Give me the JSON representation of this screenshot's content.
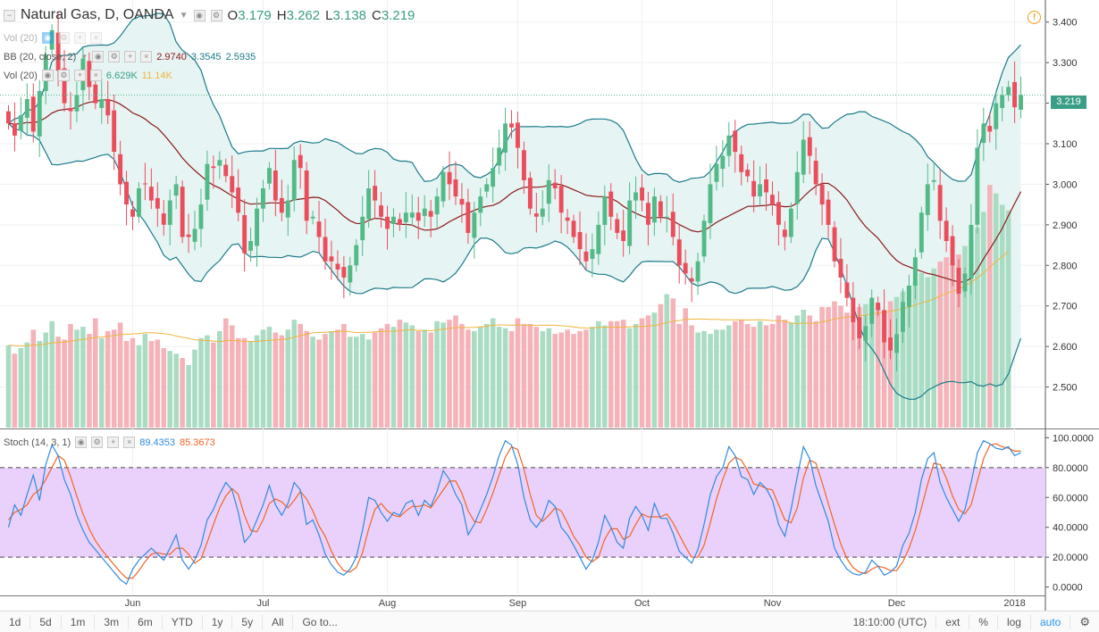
{
  "header": {
    "symbol": "Natural Gas, D, OANDA",
    "open_label": "O",
    "open": "3.179",
    "high_label": "H",
    "high": "3.262",
    "low_label": "L",
    "low": "3.138",
    "close_label": "C",
    "close": "3.219"
  },
  "legends": {
    "vol_faded": "Vol (20)",
    "bb": {
      "name": "BB (20, close, 2)",
      "v1": "2.9740",
      "v2": "3.3545",
      "v3": "2.5935"
    },
    "vol": {
      "name": "Vol (20)",
      "v1": "6.629K",
      "v2": "11.14K"
    },
    "stoch": {
      "name": "Stoch (14, 3, 1)",
      "v1": "89.4353",
      "v2": "85.3673"
    }
  },
  "last_price_tag": "3.219",
  "toolbar": {
    "timeframes": [
      "1d",
      "5d",
      "1m",
      "3m",
      "6m",
      "YTD",
      "1y",
      "5y",
      "All"
    ],
    "goto": "Go to...",
    "time": "18:10:00 (UTC)",
    "ext": "ext",
    "percent": "%",
    "log": "log",
    "auto": "auto"
  },
  "colors": {
    "up": "#53b987",
    "down": "#eb4d5c",
    "bb_band": "#1b7b8a",
    "bb_basis": "#8b1a1a",
    "bb_fill": "#e6f4f3",
    "vol_ma": "#f0b43c",
    "k_line": "#2f8ae0",
    "d_line": "#f26522",
    "stoch_bg": "#ead1fb",
    "accent": "#2196f3"
  },
  "chart_data": [
    {
      "type": "candlestick",
      "title": "Natural Gas, D, OANDA",
      "ylim": [
        2.4,
        3.45
      ],
      "yticks": [
        "3.400",
        "3.300",
        "3.200",
        "3.100",
        "3.000",
        "2.900",
        "2.800",
        "2.700",
        "2.600",
        "2.500"
      ],
      "ytick_values": [
        3.4,
        3.3,
        3.2,
        3.1,
        3.0,
        2.9,
        2.8,
        2.7,
        2.6,
        2.5
      ],
      "x_month_labels": [
        "Jun",
        "Jul",
        "Aug",
        "Sep",
        "Oct",
        "Nov",
        "Dec",
        "2018"
      ],
      "x_month_index": [
        20,
        41,
        61,
        82,
        102,
        123,
        143,
        162
      ],
      "closes": [
        3.15,
        3.12,
        3.17,
        3.21,
        3.13,
        3.23,
        3.32,
        3.38,
        3.28,
        3.2,
        3.18,
        3.22,
        3.31,
        3.24,
        3.2,
        3.21,
        3.17,
        3.08,
        3.0,
        2.95,
        2.92,
        2.99,
        3.0,
        2.96,
        2.94,
        2.9,
        2.96,
        3.0,
        2.87,
        2.87,
        2.89,
        2.95,
        3.05,
        3.04,
        3.06,
        3.02,
        2.98,
        2.93,
        2.83,
        2.86,
        2.94,
        2.99,
        3.04,
        2.96,
        2.93,
        2.96,
        3.06,
        3.04,
        2.91,
        2.92,
        2.87,
        2.81,
        2.81,
        2.79,
        2.77,
        2.8,
        2.85,
        2.92,
        2.99,
        2.96,
        2.92,
        2.89,
        2.92,
        2.9,
        2.93,
        2.93,
        2.91,
        2.94,
        2.92,
        2.97,
        3.03,
        3.0,
        2.97,
        2.95,
        2.88,
        2.93,
        2.97,
        3.0,
        3.04,
        3.09,
        3.15,
        3.14,
        3.09,
        3.01,
        2.94,
        2.92,
        2.94,
        3.01,
        2.99,
        2.93,
        2.91,
        2.87,
        2.84,
        2.81,
        2.84,
        2.9,
        2.97,
        2.92,
        2.88,
        2.86,
        2.96,
        2.98,
        2.96,
        2.9,
        2.97,
        2.92,
        2.92,
        2.87,
        2.8,
        2.78,
        2.76,
        2.81,
        2.91,
        3.0,
        3.05,
        3.07,
        3.12,
        3.08,
        3.03,
        3.02,
        2.97,
        3.0,
        2.98,
        2.95,
        2.9,
        2.87,
        2.94,
        3.03,
        3.11,
        3.07,
        3.0,
        2.95,
        2.9,
        2.81,
        2.77,
        2.72,
        2.66,
        2.62,
        2.65,
        2.72,
        2.69,
        2.61,
        2.59,
        2.63,
        2.71,
        2.75,
        2.82,
        2.93,
        3.0,
        3.01,
        2.91,
        2.86,
        2.8,
        2.73,
        2.78,
        2.9,
        3.09,
        3.15,
        3.13,
        3.2,
        3.22,
        3.24,
        3.19,
        3.22
      ],
      "bollinger": {
        "period": 20,
        "mult": 2,
        "basis_last": 2.974,
        "upper_last": 3.3545,
        "lower_last": 2.5935
      }
    },
    {
      "type": "bar",
      "title": "Vol (20)",
      "note": "volume in thousands",
      "ylim": [
        0,
        30
      ],
      "values": [
        5.8,
        5.2,
        5.6,
        6.0,
        6.9,
        6.1,
        6.7,
        7.5,
        6.4,
        6.2,
        7.3,
        6.9,
        7.1,
        6.6,
        7.7,
        6.3,
        6.8,
        6.9,
        7.4,
        6.1,
        6.3,
        5.8,
        6.6,
        6.1,
        6.2,
        5.6,
        5.4,
        5.2,
        4.9,
        4.4,
        5.5,
        6.3,
        6.5,
        6.0,
        6.8,
        7.7,
        7.2,
        6.3,
        6.3,
        6.1,
        6.5,
        6.9,
        7.1,
        6.7,
        6.5,
        6.9,
        7.6,
        7.3,
        6.8,
        6.4,
        6.2,
        6.6,
        6.8,
        6.9,
        7.3,
        6.4,
        6.4,
        6.6,
        6.2,
        6.7,
        7.0,
        7.3,
        7.1,
        7.6,
        7.4,
        7.2,
        6.8,
        6.9,
        6.7,
        7.5,
        7.4,
        7.6,
        7.9,
        7.3,
        6.9,
        6.8,
        7.1,
        7.3,
        7.7,
        7.1,
        7.0,
        6.8,
        7.7,
        7.3,
        7.3,
        7.1,
        6.8,
        7.0,
        6.6,
        6.7,
        6.9,
        6.6,
        6.8,
        6.9,
        7.1,
        7.5,
        7.2,
        7.5,
        7.5,
        7.6,
        7.0,
        7.3,
        7.7,
        7.9,
        8.1,
        8.7,
        9.4,
        9.1,
        7.3,
        8.4,
        7.2,
        6.7,
        6.8,
        6.6,
        6.9,
        6.9,
        7.2,
        7.5,
        7.6,
        7.3,
        7.1,
        7.5,
        7.2,
        7.3,
        7.9,
        7.6,
        7.4,
        7.9,
        8.3,
        7.9,
        7.5,
        8.5,
        8.5,
        8.9,
        8.6,
        8.1,
        7.8,
        8.5,
        8.7,
        8.8,
        8.5,
        8.2,
        8.9,
        9.2,
        9.6,
        10.0,
        10.3,
        10.9,
        10.6,
        11.2,
        11.7,
        12.0,
        11.6,
        12.2,
        12.8,
        13.2,
        14.1,
        15.2,
        17.1,
        16.5,
        15.7,
        15.3
      ],
      "ma_last": 11.14,
      "last_value": 6.629
    },
    {
      "type": "line",
      "title": "Stoch (14, 3, 1)",
      "ylim": [
        -5,
        105
      ],
      "yticks": [
        "100.0000",
        "80.0000",
        "60.0000",
        "40.0000",
        "20.0000",
        "0.0000"
      ],
      "ytick_values": [
        100,
        80,
        60,
        40,
        20,
        0
      ],
      "bands": [
        20,
        80
      ],
      "series": [
        {
          "name": "%K",
          "last": 89.4353,
          "values": [
            40,
            55,
            48,
            62,
            75,
            58,
            82,
            95,
            88,
            72,
            62,
            48,
            38,
            30,
            25,
            20,
            15,
            10,
            5,
            2,
            12,
            18,
            22,
            26,
            22,
            18,
            26,
            35,
            18,
            12,
            18,
            28,
            45,
            52,
            62,
            70,
            65,
            50,
            30,
            35,
            45,
            55,
            68,
            55,
            48,
            56,
            70,
            65,
            42,
            45,
            35,
            22,
            15,
            10,
            8,
            12,
            20,
            38,
            60,
            58,
            50,
            44,
            50,
            48,
            56,
            58,
            48,
            58,
            54,
            64,
            78,
            72,
            62,
            55,
            35,
            42,
            52,
            62,
            74,
            88,
            98,
            95,
            82,
            60,
            45,
            40,
            46,
            58,
            54,
            40,
            35,
            28,
            20,
            12,
            18,
            30,
            48,
            40,
            30,
            26,
            46,
            54,
            48,
            38,
            56,
            46,
            46,
            36,
            24,
            20,
            16,
            25,
            42,
            62,
            74,
            80,
            94,
            88,
            74,
            72,
            62,
            70,
            66,
            58,
            42,
            34,
            52,
            74,
            94,
            86,
            68,
            56,
            44,
            26,
            18,
            12,
            9,
            8,
            10,
            18,
            14,
            8,
            10,
            14,
            28,
            36,
            50,
            72,
            86,
            90,
            70,
            60,
            52,
            44,
            52,
            70,
            90,
            98,
            96,
            93,
            92,
            94,
            88,
            90
          ]
        },
        {
          "name": "%D",
          "last": 85.3673,
          "values": [
            45,
            50,
            52,
            55,
            62,
            65,
            72,
            80,
            88,
            85,
            74,
            61,
            49,
            39,
            31,
            25,
            20,
            15,
            10,
            6,
            6,
            11,
            17,
            22,
            23,
            22,
            22,
            26,
            26,
            22,
            16,
            19,
            30,
            42,
            53,
            61,
            66,
            62,
            48,
            38,
            37,
            45,
            56,
            59,
            57,
            53,
            58,
            64,
            59,
            51,
            41,
            34,
            24,
            16,
            11,
            10,
            13,
            23,
            39,
            52,
            56,
            51,
            48,
            47,
            51,
            54,
            54,
            55,
            53,
            59,
            65,
            71,
            71,
            63,
            51,
            44,
            43,
            52,
            63,
            75,
            87,
            94,
            92,
            79,
            62,
            48,
            44,
            48,
            53,
            51,
            43,
            34,
            28,
            20,
            17,
            20,
            32,
            39,
            39,
            32,
            34,
            42,
            49,
            47,
            47,
            47,
            49,
            43,
            35,
            27,
            20,
            20,
            28,
            43,
            59,
            72,
            83,
            87,
            85,
            78,
            69,
            68,
            66,
            65,
            55,
            45,
            43,
            53,
            73,
            85,
            83,
            70,
            56,
            42,
            29,
            19,
            13,
            10,
            9,
            12,
            14,
            13,
            11,
            11,
            17,
            26,
            38,
            53,
            69,
            83,
            82,
            73,
            61,
            52,
            49,
            55,
            71,
            86,
            95,
            96,
            94,
            93,
            91,
            91
          ]
        }
      ]
    }
  ]
}
